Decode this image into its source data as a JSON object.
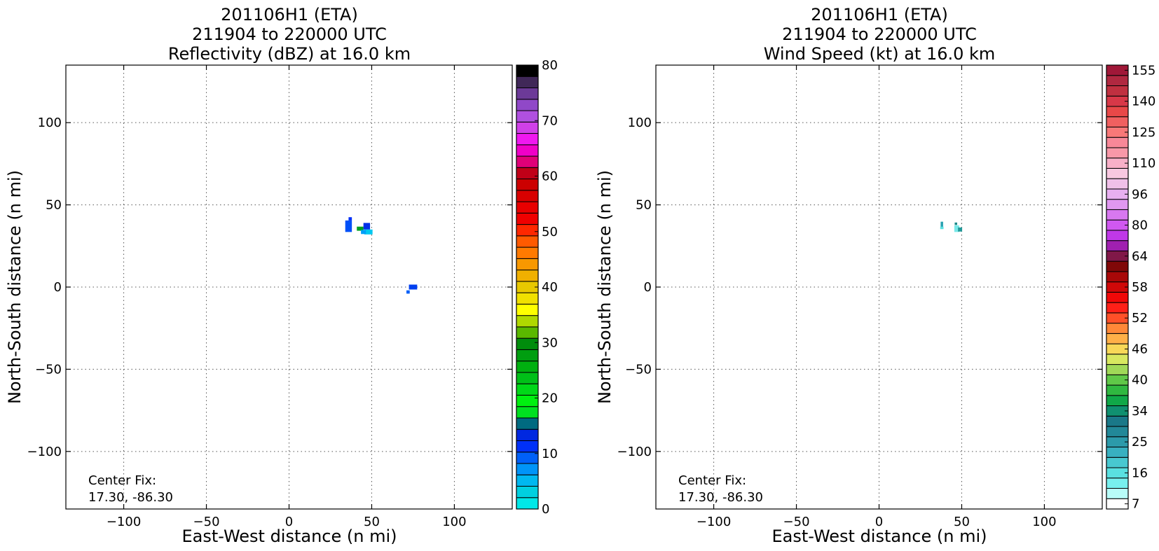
{
  "chart_data": [
    {
      "type": "heatmap",
      "title": [
        "201106H1 (ETA)",
        "211904 to 220000 UTC",
        "Reflectivity (dBZ) at 16.0 km"
      ],
      "xlabel": "East-West distance (n mi)",
      "ylabel": "North-South distance (n mi)",
      "xlim": [
        -135,
        135
      ],
      "ylim": [
        -135,
        135
      ],
      "xticks": [
        -100,
        -50,
        0,
        50,
        100
      ],
      "yticks": [
        -100,
        -50,
        0,
        50,
        100
      ],
      "grid": true,
      "annotation": [
        "Center Fix:",
        "17.30, -86.30"
      ],
      "colorbar": {
        "min": 0,
        "max": 80,
        "tick_labels": [
          "0",
          "10",
          "20",
          "30",
          "40",
          "50",
          "60",
          "70",
          "80"
        ],
        "colors": [
          "#00e8e8",
          "#00d0e0",
          "#00b8f0",
          "#0094f8",
          "#0060f8",
          "#0030f8",
          "#0028e0",
          "#006a80",
          "#00e020",
          "#00f010",
          "#00d818",
          "#00c018",
          "#00b010",
          "#009e10",
          "#008c0c",
          "#5ab800",
          "#b0d800",
          "#ffff00",
          "#f0e000",
          "#e8c800",
          "#f0b000",
          "#f89800",
          "#ff7a00",
          "#ff5a00",
          "#ff2800",
          "#f00000",
          "#e80000",
          "#d80000",
          "#cc0000",
          "#c00018",
          "#e00078",
          "#f000c8",
          "#f018f0",
          "#d040e8",
          "#b050e0",
          "#9048c8",
          "#6c3a98",
          "#402858",
          "#000000"
        ]
      },
      "echoes": [
        {
          "x": 36,
          "y": 37,
          "w": 4,
          "h": 7,
          "color": "#0050f8"
        },
        {
          "x": 37,
          "y": 41.5,
          "w": 2,
          "h": 2,
          "color": "#0030f8"
        },
        {
          "x": 43,
          "y": 35.5,
          "w": 4,
          "h": 2.5,
          "color": "#00a020"
        },
        {
          "x": 47,
          "y": 37,
          "w": 4,
          "h": 4,
          "color": "#0030e8"
        },
        {
          "x": 48,
          "y": 33.5,
          "w": 5,
          "h": 3,
          "color": "#00c8f0"
        },
        {
          "x": 45,
          "y": 33.5,
          "w": 3,
          "h": 2.5,
          "color": "#009ef8"
        },
        {
          "x": 75,
          "y": 0,
          "w": 5,
          "h": 3,
          "color": "#0040f0"
        },
        {
          "x": 72,
          "y": -3,
          "w": 2,
          "h": 2,
          "color": "#0060f8"
        }
      ]
    },
    {
      "type": "heatmap",
      "title": [
        "201106H1 (ETA)",
        "211904 to 220000 UTC",
        "Wind Speed (kt) at 16.0 km"
      ],
      "xlabel": "East-West distance (n mi)",
      "ylabel": "North-South distance (n mi)",
      "xlim": [
        -135,
        135
      ],
      "ylim": [
        -135,
        135
      ],
      "xticks": [
        -100,
        -50,
        0,
        50,
        100
      ],
      "yticks": [
        -100,
        -50,
        0,
        50,
        100
      ],
      "grid": true,
      "annotation": [
        "Center Fix:",
        "17.30, -86.30"
      ],
      "colorbar": {
        "tick_labels": [
          "7",
          "16",
          "25",
          "34",
          "40",
          "46",
          "52",
          "58",
          "64",
          "80",
          "96",
          "110",
          "125",
          "140",
          "155"
        ],
        "colors": [
          "#ffffff",
          "#b8fcf8",
          "#78f0ee",
          "#5ae0e0",
          "#48c8d0",
          "#38b0c0",
          "#2c9aaa",
          "#228898",
          "#1a7888",
          "#109070",
          "#10a848",
          "#30b840",
          "#60c848",
          "#a0d858",
          "#d8e860",
          "#f8d858",
          "#ffb048",
          "#ff8838",
          "#ff5028",
          "#ff2018",
          "#f00808",
          "#d00808",
          "#a80808",
          "#800808",
          "#801848",
          "#a020b0",
          "#c038e8",
          "#d058f0",
          "#d878f0",
          "#e098f0",
          "#e8b0f0",
          "#f0c0e8",
          "#f8c8e0",
          "#f8b0c8",
          "#f898a8",
          "#f88898",
          "#f87878",
          "#f06060",
          "#e84848",
          "#d83848",
          "#c03040",
          "#b02840",
          "#a01838"
        ]
      },
      "echoes": [
        {
          "x": 38,
          "y": 38,
          "w": 1.5,
          "h": 3.5,
          "color": "#28a0b0"
        },
        {
          "x": 38,
          "y": 36,
          "w": 2,
          "h": 1.5,
          "color": "#5ae0e0"
        },
        {
          "x": 47,
          "y": 35.5,
          "w": 3,
          "h": 4,
          "color": "#78e8e8"
        },
        {
          "x": 49,
          "y": 35,
          "w": 2.5,
          "h": 2.5,
          "color": "#229898"
        },
        {
          "x": 46.5,
          "y": 38.5,
          "w": 1.5,
          "h": 1.5,
          "color": "#1a8888"
        }
      ]
    }
  ]
}
